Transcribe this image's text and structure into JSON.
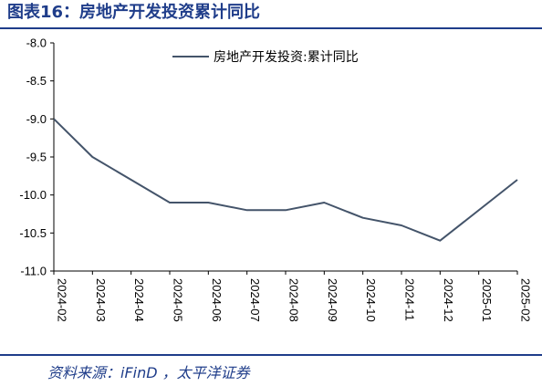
{
  "figure_title": "图表16：房地产开发投资累计同比",
  "source_note": "资料来源：iFinD ，太平洋证券",
  "chart_data": {
    "type": "line",
    "title": "",
    "xlabel": "",
    "ylabel": "",
    "categories": [
      "2024-02",
      "2024-03",
      "2024-04",
      "2024-05",
      "2024-06",
      "2024-07",
      "2024-08",
      "2024-09",
      "2024-10",
      "2024-11",
      "2024-12",
      "2025-01",
      "2025-02"
    ],
    "series": [
      {
        "name": "房地产开发投资:累计同比",
        "color": "#44546a",
        "values": [
          -9.0,
          -9.5,
          -9.8,
          -10.1,
          -10.1,
          -10.2,
          -10.2,
          -10.1,
          -10.3,
          -10.4,
          -10.6,
          null,
          -9.8
        ]
      }
    ],
    "ylim": [
      -11.0,
      -8.0
    ],
    "yticks": [
      "-8.0",
      "-8.5",
      "-9.0",
      "-9.5",
      "-10.0",
      "-10.5",
      "-11.0"
    ],
    "grid": false,
    "legend_position": "top-center"
  }
}
